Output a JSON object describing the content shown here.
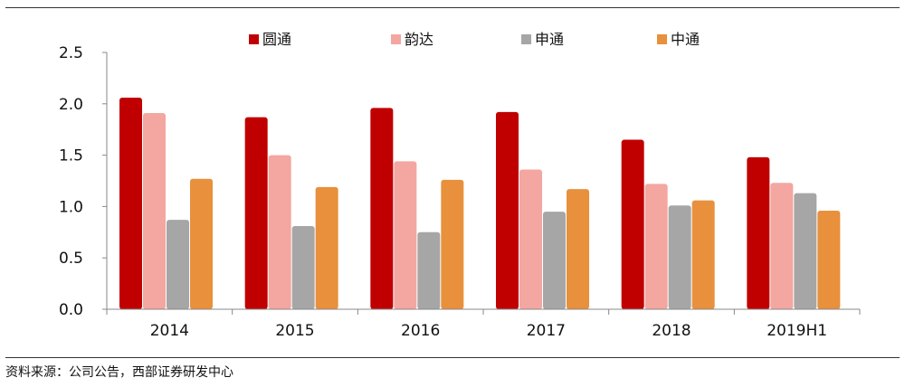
{
  "chart_data": {
    "type": "bar",
    "title": "",
    "xlabel": "",
    "ylabel": "",
    "categories": [
      "2014",
      "2015",
      "2016",
      "2017",
      "2018",
      "2019H1"
    ],
    "ylim": [
      0,
      2.5
    ],
    "yticks": [
      "0.0",
      "0.5",
      "1.0",
      "1.5",
      "2.0",
      "2.5"
    ],
    "legend_position": "top",
    "grid": false,
    "series": [
      {
        "name": "圆通",
        "color": "#c00000",
        "values": [
          2.06,
          1.87,
          1.96,
          1.92,
          1.65,
          1.48
        ]
      },
      {
        "name": "韵达",
        "color": "#f4a6a0",
        "values": [
          1.91,
          1.5,
          1.44,
          1.36,
          1.22,
          1.23
        ]
      },
      {
        "name": "申通",
        "color": "#a6a6a6",
        "values": [
          0.87,
          0.81,
          0.75,
          0.95,
          1.01,
          1.13
        ]
      },
      {
        "name": "中通",
        "color": "#e8903c",
        "values": [
          1.27,
          1.19,
          1.26,
          1.17,
          1.06,
          0.96
        ]
      }
    ]
  },
  "footer": {
    "source": "资料来源：公司公告，西部证券研发中心"
  }
}
